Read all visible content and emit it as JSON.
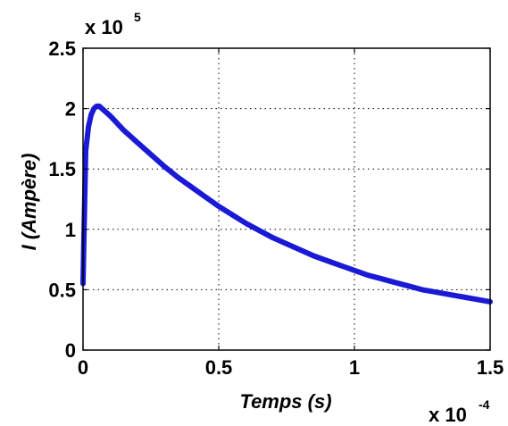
{
  "chart_data": {
    "type": "line",
    "title": "",
    "xlabel": "Temps (s)",
    "ylabel": "I (Ampère)",
    "x_multiplier": {
      "base": "x 10",
      "exponent": "-4"
    },
    "y_multiplier": {
      "base": "x 10",
      "exponent": "5"
    },
    "xlim": [
      0,
      1.5
    ],
    "ylim": [
      0,
      2.5
    ],
    "x_ticks": [
      0,
      0.5,
      1,
      1.5
    ],
    "x_tick_labels": [
      "0",
      "0.5",
      "1",
      "1.5"
    ],
    "y_ticks": [
      0,
      0.5,
      1,
      1.5,
      2,
      2.5
    ],
    "y_tick_labels": [
      "0",
      "0.5",
      "1",
      "1.5",
      "2",
      "2.5"
    ],
    "grid": true,
    "grid_style": "dotted",
    "line_color": "#1a1ad6",
    "series": [
      {
        "x": [
          0,
          0.003,
          0.01,
          0.02,
          0.03,
          0.04,
          0.05,
          0.06,
          0.07,
          0.1,
          0.15,
          0.2,
          0.25,
          0.3,
          0.35,
          0.4,
          0.45,
          0.5,
          0.55,
          0.6,
          0.65,
          0.7,
          0.75,
          0.8,
          0.85,
          0.9,
          0.95,
          1.0,
          1.05,
          1.1,
          1.15,
          1.2,
          1.25,
          1.3,
          1.35,
          1.4,
          1.45,
          1.5
        ],
        "y": [
          0.55,
          0.9,
          1.65,
          1.85,
          1.95,
          2.0,
          2.02,
          2.02,
          2.0,
          1.94,
          1.82,
          1.72,
          1.62,
          1.52,
          1.43,
          1.35,
          1.27,
          1.19,
          1.12,
          1.05,
          0.99,
          0.93,
          0.88,
          0.83,
          0.78,
          0.74,
          0.7,
          0.66,
          0.62,
          0.59,
          0.56,
          0.53,
          0.5,
          0.48,
          0.46,
          0.44,
          0.42,
          0.4
        ]
      }
    ]
  }
}
